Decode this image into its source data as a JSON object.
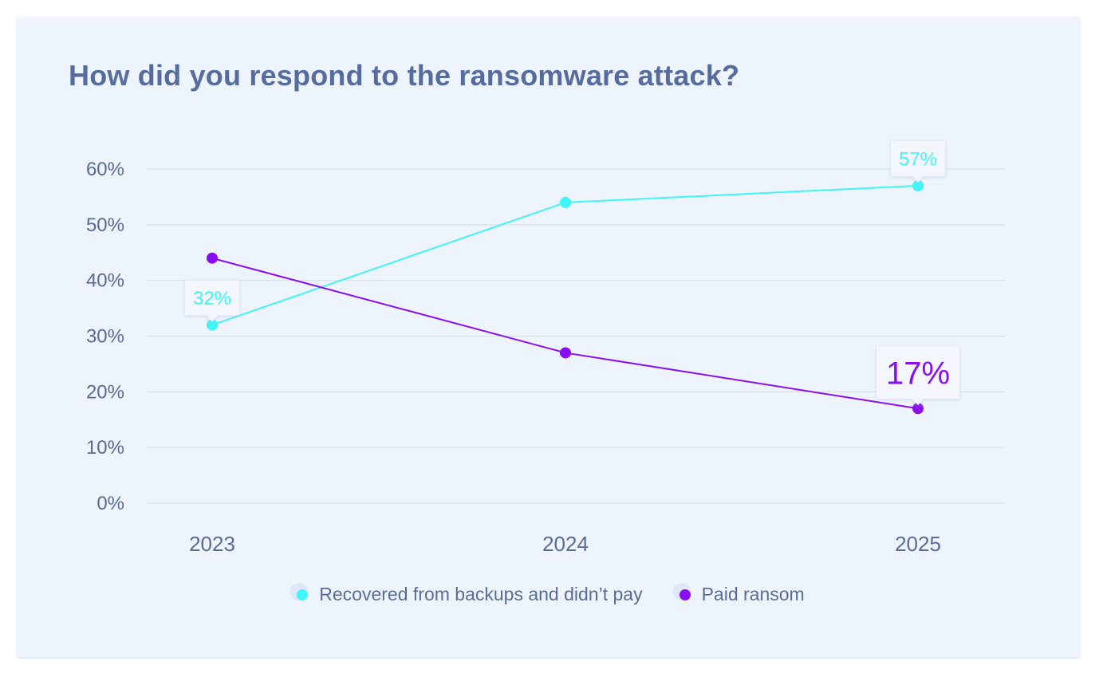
{
  "chart_data": {
    "type": "line",
    "title": "How did you respond to the ransomware attack?",
    "categories": [
      "2023",
      "2024",
      "2025"
    ],
    "y_tick_labels": [
      "0%",
      "10%",
      "20%",
      "30%",
      "40%",
      "50%",
      "60%"
    ],
    "ylim": [
      0,
      60
    ],
    "grid": true,
    "legend_position": "bottom",
    "series": [
      {
        "name": "Recovered from backups and didn't pay",
        "values": [
          32,
          54,
          57
        ],
        "color": "#3ff5f5",
        "callouts": [
          {
            "index": 0,
            "label": "32%"
          },
          {
            "index": 2,
            "label": "57%"
          }
        ]
      },
      {
        "name": "Paid ransom",
        "values": [
          44,
          27,
          17
        ],
        "color": "#8a0ff0",
        "callouts": [
          {
            "index": 2,
            "label": "17%"
          }
        ]
      }
    ]
  },
  "legend": {
    "items": [
      {
        "label": "Recovered from backups and didn’t pay",
        "color": "#3ff5f5"
      },
      {
        "label": "Paid ransom",
        "color": "#8a0ff0"
      }
    ]
  }
}
